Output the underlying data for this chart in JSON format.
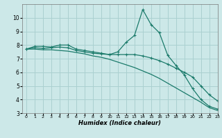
{
  "xlabel": "Humidex (Indice chaleur)",
  "ylabel": "",
  "bg_color": "#cce8e8",
  "grid_color": "#aad0d0",
  "line_color": "#1a7a6a",
  "xlim": [
    -0.5,
    23
  ],
  "ylim": [
    3,
    11
  ],
  "yticks": [
    3,
    4,
    5,
    6,
    7,
    8,
    9,
    10
  ],
  "xticks": [
    0,
    1,
    2,
    3,
    4,
    5,
    6,
    7,
    8,
    9,
    10,
    11,
    12,
    13,
    14,
    15,
    16,
    17,
    18,
    19,
    20,
    21,
    22,
    23
  ],
  "line1_x": [
    0,
    1,
    2,
    3,
    4,
    5,
    6,
    7,
    8,
    9,
    10,
    11,
    12,
    13,
    14,
    15,
    16,
    17,
    18,
    19,
    20,
    21,
    22,
    23
  ],
  "line1_y": [
    7.7,
    7.9,
    7.9,
    7.85,
    8.0,
    8.0,
    7.7,
    7.6,
    7.5,
    7.4,
    7.3,
    7.5,
    8.2,
    8.7,
    10.6,
    9.5,
    8.9,
    7.25,
    6.5,
    5.8,
    4.8,
    4.0,
    3.5,
    3.3
  ],
  "line2_x": [
    0,
    1,
    2,
    3,
    4,
    5,
    6,
    7,
    8,
    9,
    10,
    11,
    12,
    13,
    14,
    15,
    16,
    17,
    18,
    19,
    20,
    21,
    22,
    23
  ],
  "line2_y": [
    7.7,
    7.8,
    7.75,
    7.8,
    7.85,
    7.8,
    7.6,
    7.5,
    7.4,
    7.35,
    7.3,
    7.3,
    7.3,
    7.3,
    7.2,
    7.05,
    6.85,
    6.6,
    6.3,
    6.0,
    5.65,
    5.0,
    4.35,
    3.9
  ],
  "line3_x": [
    0,
    1,
    2,
    3,
    4,
    5,
    6,
    7,
    8,
    9,
    10,
    11,
    12,
    13,
    14,
    15,
    16,
    17,
    18,
    19,
    20,
    21,
    22,
    23
  ],
  "line3_y": [
    7.7,
    7.7,
    7.65,
    7.65,
    7.6,
    7.55,
    7.45,
    7.35,
    7.2,
    7.1,
    6.95,
    6.75,
    6.55,
    6.35,
    6.1,
    5.85,
    5.55,
    5.2,
    4.85,
    4.5,
    4.15,
    3.8,
    3.4,
    3.2
  ]
}
